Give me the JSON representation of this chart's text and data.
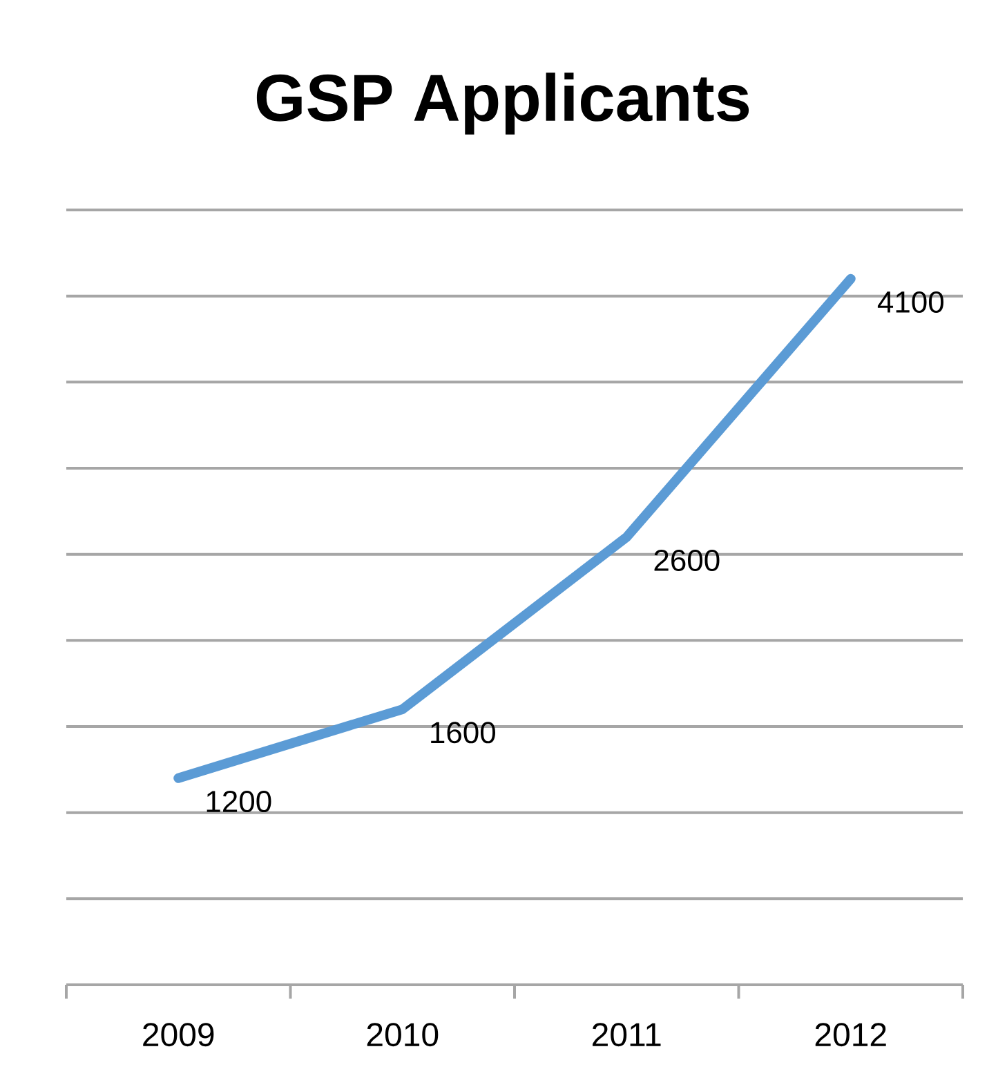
{
  "chart_data": {
    "type": "line",
    "title": "GSP Applicants",
    "categories": [
      "2009",
      "2010",
      "2011",
      "2012"
    ],
    "values": [
      1200,
      1600,
      2600,
      4100
    ],
    "color": "#5b9bd5",
    "ylim": [
      0,
      4500
    ],
    "yticks": [
      {
        "value": 0,
        "label": null
      },
      {
        "value": 500,
        "label": null
      },
      {
        "value": 1000,
        "label": null
      },
      {
        "value": 1500,
        "label": null
      },
      {
        "value": 2000,
        "label": null
      },
      {
        "value": 2500,
        "label": null
      },
      {
        "value": 3000,
        "label": null
      },
      {
        "value": 3500,
        "label": null
      },
      {
        "value": 4000,
        "label": null
      },
      {
        "value": 4500,
        "label": null
      }
    ],
    "grid": "y",
    "tick_labels": "x",
    "data_labels": true,
    "marker": "none",
    "line_style": "solid"
  }
}
